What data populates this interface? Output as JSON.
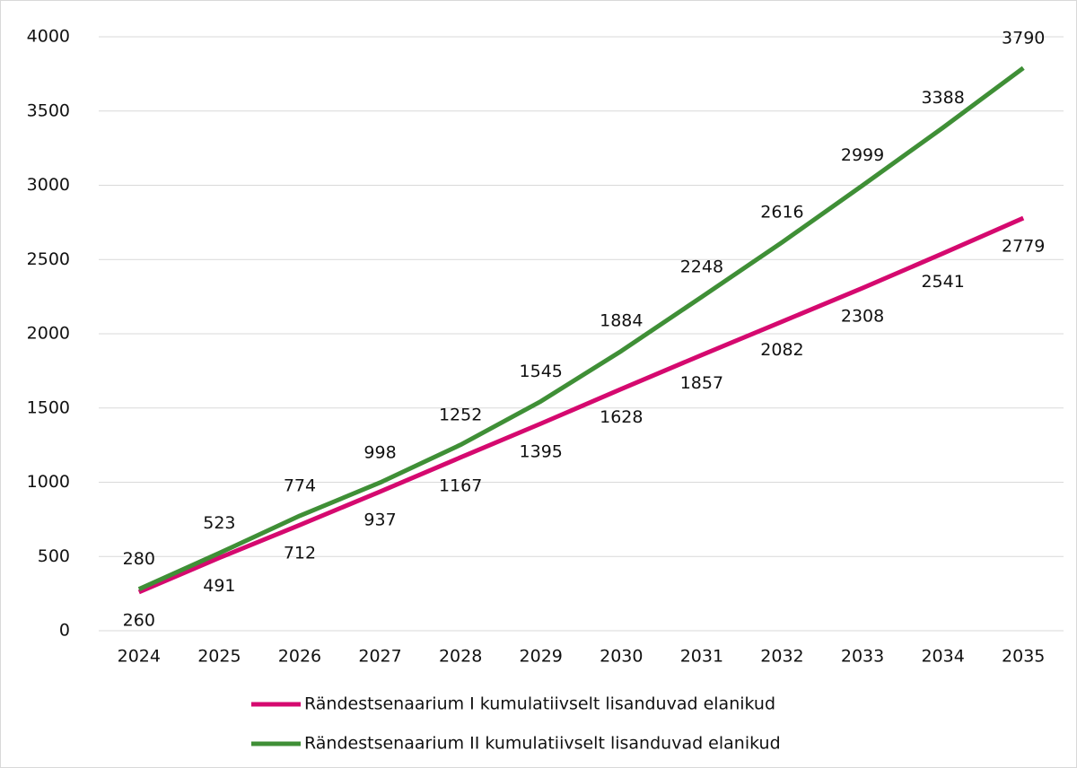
{
  "chart_data": {
    "type": "line",
    "categories": [
      "2024",
      "2025",
      "2026",
      "2027",
      "2028",
      "2029",
      "2030",
      "2031",
      "2032",
      "2033",
      "2034",
      "2035"
    ],
    "series": [
      {
        "name": "Rändestsenaarium I kumulatiivselt lisanduvad elanikud",
        "color": "#d5096f",
        "values": [
          260,
          491,
          712,
          937,
          1167,
          1395,
          1628,
          1857,
          2082,
          2308,
          2541,
          2779
        ]
      },
      {
        "name": "Rändestsenaarium II kumulatiivselt lisanduvad elanikud",
        "color": "#3f8f36",
        "values": [
          280,
          523,
          774,
          998,
          1252,
          1545,
          1884,
          2248,
          2616,
          2999,
          3388,
          3790
        ]
      }
    ],
    "ylim": [
      0,
      4000
    ],
    "yticks": [
      0,
      500,
      1000,
      1500,
      2000,
      2500,
      3000,
      3500,
      4000
    ],
    "grid": true,
    "legend": "bottom"
  }
}
